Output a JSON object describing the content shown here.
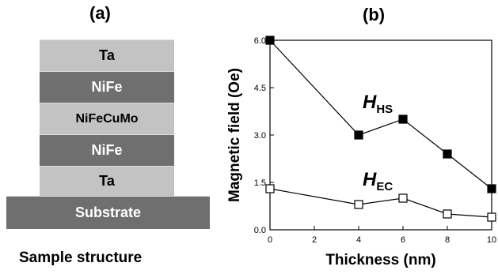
{
  "panel_a": {
    "label": "(a)",
    "layers": [
      {
        "name": "Ta",
        "shade": "light"
      },
      {
        "name": "NiFe",
        "shade": "dark"
      },
      {
        "name": "NiFeCuMo",
        "shade": "light"
      },
      {
        "name": "NiFe",
        "shade": "dark"
      },
      {
        "name": "Ta",
        "shade": "light"
      }
    ],
    "substrate": "Substrate",
    "caption": "Sample structure"
  },
  "chart_data": {
    "panel_label": "(b)",
    "type": "line",
    "xlabel": "Thickness (nm)",
    "ylabel": "Magnetic field (Oe)",
    "xlim": [
      0,
      10
    ],
    "ylim": [
      0,
      6
    ],
    "xticks": [
      "0",
      "2",
      "4",
      "6",
      "8",
      "10"
    ],
    "yticks": [
      "0.0",
      "1.5",
      "3.0",
      "4.5",
      "6.0"
    ],
    "grid": false,
    "series": [
      {
        "name_main": "H",
        "name_sub": "HS",
        "marker": "filled-square",
        "points": [
          [
            0,
            6.0
          ],
          [
            4,
            3.0
          ],
          [
            6,
            3.5
          ],
          [
            8,
            2.4
          ],
          [
            10,
            1.3
          ]
        ]
      },
      {
        "name_main": "H",
        "name_sub": "EC",
        "marker": "open-square",
        "points": [
          [
            0,
            1.3
          ],
          [
            4,
            0.8
          ],
          [
            6,
            1.0
          ],
          [
            8,
            0.5
          ],
          [
            10,
            0.4
          ]
        ]
      }
    ]
  }
}
